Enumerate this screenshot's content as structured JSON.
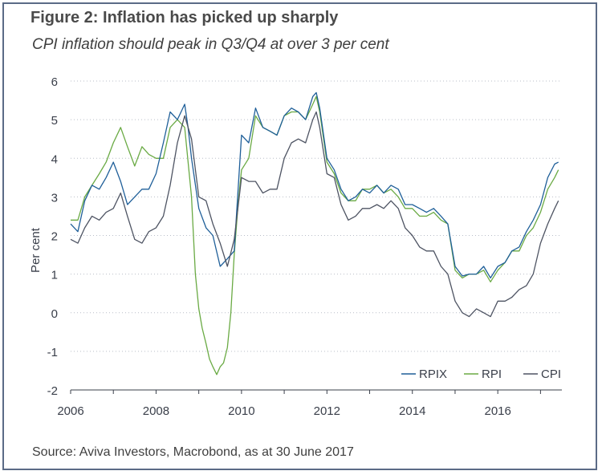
{
  "figure": {
    "title": "Figure 2:  Inflation has picked up sharply",
    "subtitle": "CPI inflation should peak in Q3/Q4 at over 3 per cent",
    "source": "Source: Aviva Investors, Macrobond, as at 30 June 2017"
  },
  "chart_data": {
    "type": "line",
    "ylabel": "Per cent",
    "xlabel": "",
    "xlim": [
      2006.0,
      2017.5
    ],
    "ylim": [
      -2,
      6
    ],
    "yticks": [
      6,
      5,
      4,
      3,
      2,
      1,
      0,
      -1,
      -2
    ],
    "xticks": [
      2006,
      2008,
      2010,
      2012,
      2014,
      2016
    ],
    "grid": "horizontal dotted",
    "legend": "bottom-right",
    "series": [
      {
        "name": "RPIX",
        "color": "#1f5f99",
        "x": [
          2006.0,
          2006.17,
          2006.33,
          2006.5,
          2006.67,
          2006.83,
          2007.0,
          2007.17,
          2007.33,
          2007.5,
          2007.67,
          2007.83,
          2008.0,
          2008.17,
          2008.33,
          2008.5,
          2008.67,
          2008.75,
          2008.83,
          2009.0,
          2009.17,
          2009.33,
          2009.5,
          2009.67,
          2009.83,
          2010.0,
          2010.17,
          2010.33,
          2010.5,
          2010.67,
          2010.83,
          2011.0,
          2011.17,
          2011.33,
          2011.5,
          2011.67,
          2011.75,
          2011.83,
          2012.0,
          2012.17,
          2012.33,
          2012.5,
          2012.67,
          2012.83,
          2013.0,
          2013.17,
          2013.33,
          2013.5,
          2013.67,
          2013.83,
          2014.0,
          2014.17,
          2014.33,
          2014.5,
          2014.67,
          2014.83,
          2015.0,
          2015.17,
          2015.33,
          2015.5,
          2015.67,
          2015.83,
          2016.0,
          2016.17,
          2016.33,
          2016.5,
          2016.67,
          2016.83,
          2017.0,
          2017.17,
          2017.33,
          2017.42
        ],
        "values": [
          2.3,
          2.1,
          2.9,
          3.3,
          3.2,
          3.5,
          3.9,
          3.4,
          2.8,
          3.0,
          3.2,
          3.2,
          3.6,
          4.4,
          5.2,
          5.0,
          5.4,
          4.8,
          4.0,
          2.7,
          2.2,
          2.0,
          1.2,
          1.4,
          1.6,
          4.6,
          4.4,
          5.3,
          4.8,
          4.7,
          4.6,
          5.1,
          5.3,
          5.2,
          5.0,
          5.6,
          5.7,
          5.3,
          4.0,
          3.7,
          3.2,
          2.9,
          3.0,
          3.2,
          3.1,
          3.3,
          3.1,
          3.3,
          3.2,
          2.8,
          2.8,
          2.7,
          2.6,
          2.7,
          2.5,
          2.3,
          1.2,
          0.95,
          1.0,
          1.0,
          1.2,
          0.9,
          1.2,
          1.3,
          1.6,
          1.7,
          2.1,
          2.4,
          2.8,
          3.5,
          3.85,
          3.9
        ]
      },
      {
        "name": "RPI",
        "color": "#6aaa44",
        "x": [
          2006.0,
          2006.17,
          2006.33,
          2006.5,
          2006.67,
          2006.83,
          2007.0,
          2007.17,
          2007.33,
          2007.5,
          2007.67,
          2007.83,
          2008.0,
          2008.17,
          2008.33,
          2008.5,
          2008.67,
          2008.83,
          2008.92,
          2009.0,
          2009.08,
          2009.17,
          2009.25,
          2009.33,
          2009.42,
          2009.5,
          2009.58,
          2009.67,
          2009.75,
          2009.83,
          2009.92,
          2010.0,
          2010.17,
          2010.33,
          2010.5,
          2010.67,
          2010.83,
          2011.0,
          2011.17,
          2011.33,
          2011.5,
          2011.67,
          2011.75,
          2011.83,
          2012.0,
          2012.17,
          2012.33,
          2012.5,
          2012.67,
          2012.83,
          2013.0,
          2013.17,
          2013.33,
          2013.5,
          2013.67,
          2013.83,
          2014.0,
          2014.17,
          2014.33,
          2014.5,
          2014.67,
          2014.83,
          2015.0,
          2015.17,
          2015.33,
          2015.5,
          2015.67,
          2015.83,
          2016.0,
          2016.17,
          2016.33,
          2016.5,
          2016.67,
          2016.83,
          2017.0,
          2017.17,
          2017.33,
          2017.42
        ],
        "values": [
          2.4,
          2.4,
          3.0,
          3.3,
          3.6,
          3.9,
          4.4,
          4.8,
          4.3,
          3.8,
          4.3,
          4.1,
          4.0,
          4.0,
          4.8,
          5.0,
          4.8,
          3.0,
          1.0,
          0.1,
          -0.4,
          -0.8,
          -1.2,
          -1.4,
          -1.6,
          -1.4,
          -1.3,
          -0.9,
          0.0,
          1.5,
          2.8,
          3.7,
          4.0,
          5.1,
          4.8,
          4.7,
          4.6,
          5.1,
          5.2,
          5.2,
          5.0,
          5.4,
          5.6,
          5.2,
          3.9,
          3.6,
          3.1,
          2.9,
          2.9,
          3.2,
          3.2,
          3.3,
          3.1,
          3.2,
          3.0,
          2.7,
          2.7,
          2.5,
          2.5,
          2.6,
          2.4,
          2.3,
          1.1,
          0.9,
          1.0,
          1.0,
          1.1,
          0.8,
          1.1,
          1.3,
          1.6,
          1.6,
          2.0,
          2.2,
          2.6,
          3.2,
          3.5,
          3.7
        ]
      },
      {
        "name": "CPI",
        "color": "#4e5463",
        "x": [
          2006.0,
          2006.17,
          2006.33,
          2006.5,
          2006.67,
          2006.83,
          2007.0,
          2007.17,
          2007.33,
          2007.5,
          2007.67,
          2007.83,
          2008.0,
          2008.17,
          2008.33,
          2008.5,
          2008.67,
          2008.83,
          2009.0,
          2009.17,
          2009.33,
          2009.5,
          2009.67,
          2009.83,
          2010.0,
          2010.17,
          2010.33,
          2010.5,
          2010.67,
          2010.83,
          2011.0,
          2011.17,
          2011.33,
          2011.5,
          2011.67,
          2011.75,
          2011.83,
          2012.0,
          2012.17,
          2012.33,
          2012.5,
          2012.67,
          2012.83,
          2013.0,
          2013.17,
          2013.33,
          2013.5,
          2013.67,
          2013.83,
          2014.0,
          2014.17,
          2014.33,
          2014.5,
          2014.67,
          2014.83,
          2015.0,
          2015.17,
          2015.33,
          2015.5,
          2015.67,
          2015.83,
          2016.0,
          2016.17,
          2016.33,
          2016.5,
          2016.67,
          2016.83,
          2017.0,
          2017.17,
          2017.33,
          2017.42
        ],
        "values": [
          1.9,
          1.8,
          2.2,
          2.5,
          2.4,
          2.6,
          2.7,
          3.1,
          2.5,
          1.9,
          1.8,
          2.1,
          2.2,
          2.5,
          3.3,
          4.4,
          5.1,
          4.5,
          3.0,
          2.9,
          2.3,
          1.8,
          1.2,
          1.9,
          3.5,
          3.4,
          3.4,
          3.1,
          3.2,
          3.2,
          4.0,
          4.4,
          4.5,
          4.4,
          5.0,
          5.2,
          4.8,
          3.6,
          3.5,
          2.8,
          2.4,
          2.5,
          2.7,
          2.7,
          2.8,
          2.7,
          2.9,
          2.7,
          2.2,
          2.0,
          1.7,
          1.6,
          1.6,
          1.2,
          1.0,
          0.3,
          0.0,
          -0.1,
          0.1,
          0.0,
          -0.1,
          0.3,
          0.3,
          0.4,
          0.6,
          0.7,
          1.0,
          1.8,
          2.3,
          2.7,
          2.9
        ]
      }
    ]
  }
}
